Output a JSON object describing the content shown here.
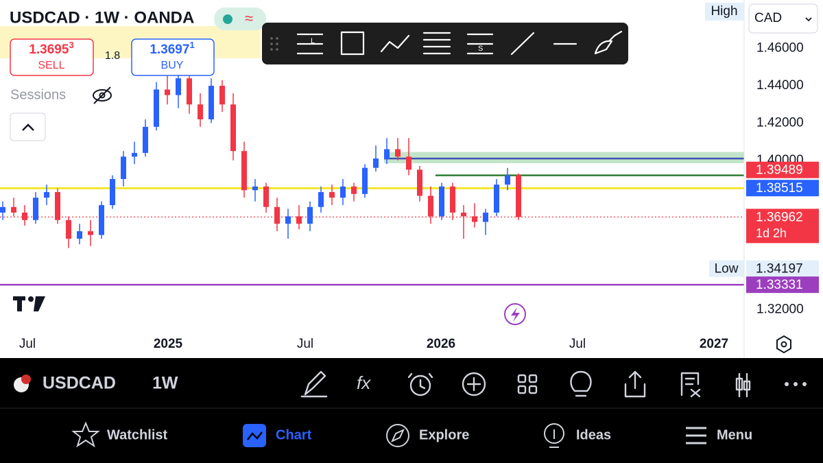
{
  "header": {
    "symbol_title": "USDCAD · 1W · OANDA",
    "sell_price": "1.3695",
    "sell_price_sup": "3",
    "sell_label": "SELL",
    "spread": "1.8",
    "buy_price": "1.3697",
    "buy_price_sup": "1",
    "buy_label": "BUY",
    "sessions": "Sessions"
  },
  "chart_data": {
    "type": "candlestick",
    "up_color": "#2962ff",
    "down_color": "#f23645",
    "open": [
      1.372,
      1.375,
      1.372,
      1.368,
      1.38,
      1.383,
      1.368,
      1.358,
      1.362,
      1.36,
      1.376,
      1.39,
      1.402,
      1.404,
      1.418,
      1.438,
      1.435,
      1.444,
      1.43,
      1.422,
      1.44,
      1.43,
      1.405,
      1.384,
      1.386,
      1.375,
      1.366,
      1.37,
      1.366,
      1.375,
      1.383,
      1.38,
      1.386,
      1.382,
      1.396,
      1.401,
      1.406,
      1.402,
      1.395,
      1.381,
      1.37,
      1.386,
      1.372,
      1.37,
      1.367,
      1.372,
      1.387,
      1.392
    ],
    "high": [
      1.378,
      1.38,
      1.376,
      1.383,
      1.387,
      1.385,
      1.37,
      1.366,
      1.368,
      1.378,
      1.392,
      1.405,
      1.41,
      1.422,
      1.442,
      1.446,
      1.448,
      1.45,
      1.436,
      1.444,
      1.443,
      1.436,
      1.41,
      1.39,
      1.388,
      1.38,
      1.374,
      1.376,
      1.378,
      1.386,
      1.387,
      1.39,
      1.388,
      1.398,
      1.408,
      1.412,
      1.412,
      1.412,
      1.397,
      1.386,
      1.388,
      1.388,
      1.376,
      1.377,
      1.374,
      1.39,
      1.396,
      1.393
    ],
    "low": [
      1.368,
      1.37,
      1.365,
      1.366,
      1.376,
      1.366,
      1.353,
      1.355,
      1.354,
      1.358,
      1.374,
      1.386,
      1.398,
      1.402,
      1.416,
      1.43,
      1.428,
      1.425,
      1.418,
      1.42,
      1.426,
      1.4,
      1.38,
      1.378,
      1.372,
      1.362,
      1.358,
      1.363,
      1.362,
      1.372,
      1.376,
      1.376,
      1.378,
      1.38,
      1.394,
      1.398,
      1.4,
      1.392,
      1.378,
      1.366,
      1.368,
      1.368,
      1.358,
      1.364,
      1.36,
      1.37,
      1.384,
      1.368
    ],
    "close": [
      1.375,
      1.372,
      1.368,
      1.38,
      1.383,
      1.368,
      1.358,
      1.362,
      1.36,
      1.376,
      1.39,
      1.402,
      1.404,
      1.418,
      1.438,
      1.435,
      1.444,
      1.43,
      1.422,
      1.44,
      1.43,
      1.405,
      1.384,
      1.386,
      1.375,
      1.366,
      1.37,
      1.366,
      1.375,
      1.383,
      1.38,
      1.386,
      1.382,
      1.396,
      1.401,
      1.406,
      1.402,
      1.395,
      1.381,
      1.37,
      1.386,
      1.372,
      1.37,
      1.367,
      1.372,
      1.387,
      1.392,
      1.3696
    ],
    "ylim": [
      1.294,
      1.486
    ],
    "yticks": [
      {
        "value": 1.46,
        "label": "1.46000"
      },
      {
        "value": 1.44,
        "label": "1.44000"
      },
      {
        "value": 1.42,
        "label": "1.42000"
      },
      {
        "value": 1.4,
        "label": "1.40000"
      },
      {
        "value": 1.32,
        "label": "1.32000"
      }
    ],
    "xtick_labels": [
      "Jul",
      "2025",
      "Jul",
      "2026",
      "Jul",
      "2027"
    ],
    "zone": {
      "from": 1.3985,
      "to": 1.4045,
      "color": "#b7e0c0"
    },
    "levels": [
      {
        "value": 1.3851,
        "color": "#f5e52b"
      },
      {
        "value": 1.392,
        "color": "#2e7d32"
      },
      {
        "value": 1.401,
        "color": "#3f51b5"
      },
      {
        "value": 1.33331,
        "color": "#9c3fbf"
      },
      {
        "value": 1.36962,
        "color": "#f23645",
        "dotted": true
      }
    ],
    "price_labels": [
      {
        "value": 1.39489,
        "label": "1.39489",
        "color": "#f23645"
      },
      {
        "value": 1.38515,
        "label": "1.38515",
        "color": "#2962ff"
      },
      {
        "value": 1.36962,
        "label": "1.36962",
        "color": "#f23645",
        "countdown": "1d 2h"
      },
      {
        "value": 1.34197,
        "label": "1.34197",
        "color": "#e3effa",
        "tag": "Low"
      },
      {
        "value": 1.33331,
        "label": "1.33331",
        "color": "#9c3fbf"
      }
    ],
    "high_tag": "High",
    "currency": "CAD"
  },
  "toolbar": {
    "symbol": "USDCAD",
    "interval": "1W"
  },
  "nav": [
    "Watchlist",
    "Chart",
    "Explore",
    "Ideas",
    "Menu"
  ]
}
